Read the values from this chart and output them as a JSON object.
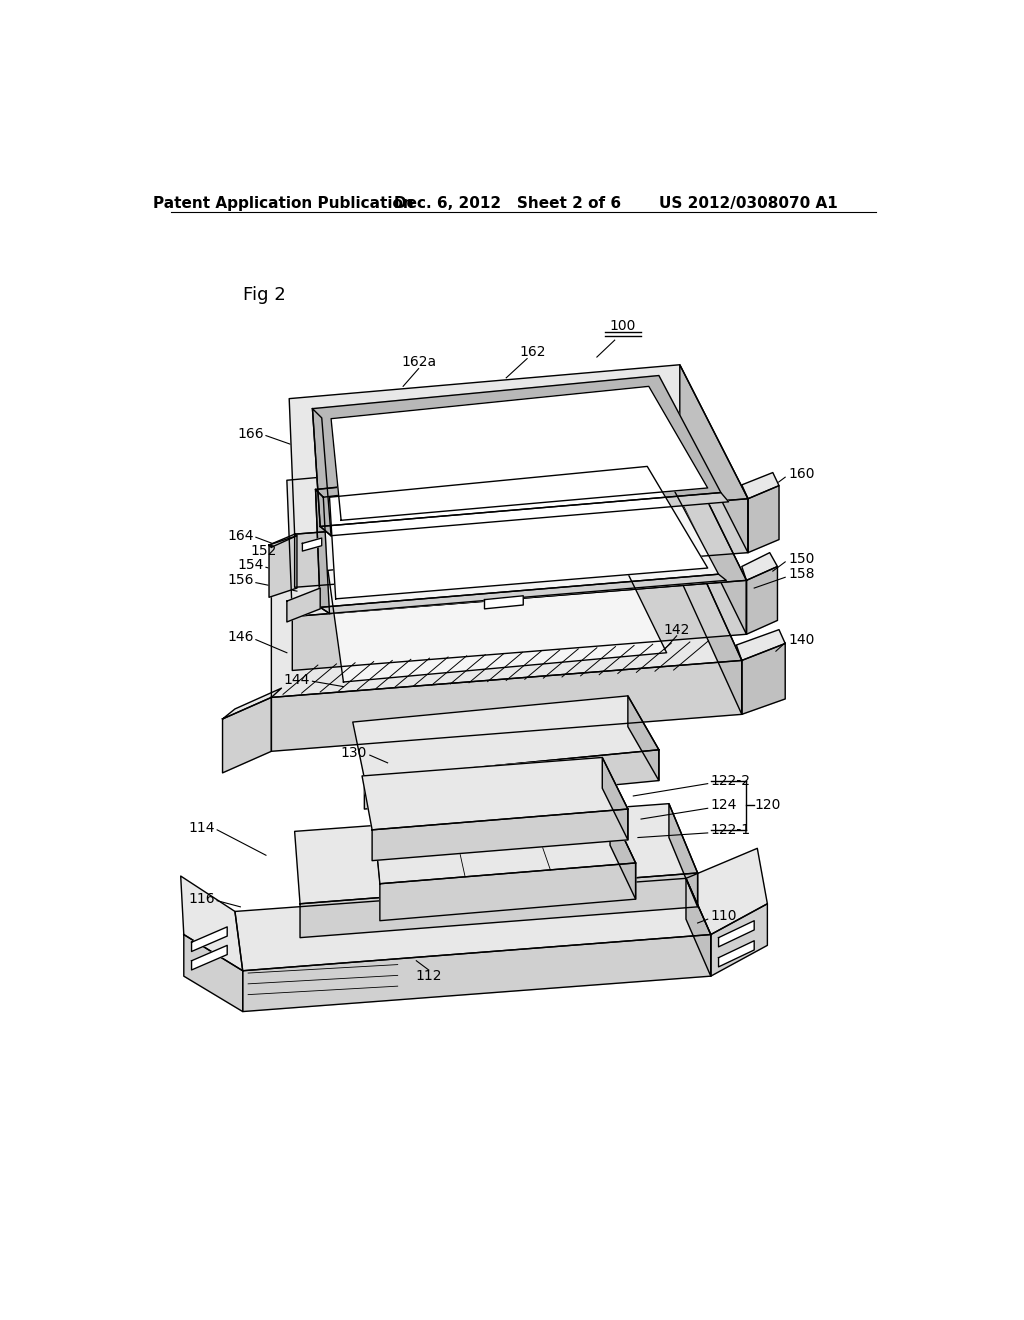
{
  "bg_color": "#ffffff",
  "header_left": "Patent Application Publication",
  "header_mid": "Dec. 6, 2012   Sheet 2 of 6",
  "header_right": "US 2012/0308070 A1",
  "fig_label": "Fig 2",
  "labels": {
    "100": "100",
    "160": "160",
    "162": "162",
    "162a": "162a",
    "166": "166",
    "164": "164",
    "152": "152",
    "154": "154",
    "156": "156",
    "150": "150",
    "158": "158",
    "146": "146",
    "142": "142",
    "144": "144",
    "140": "140",
    "130": "130",
    "120": "120",
    "122_2": "122-2",
    "124": "124",
    "122_1": "122-1",
    "114": "114",
    "116": "116",
    "110": "110",
    "112": "112"
  },
  "fc_top": "#e8e8e8",
  "fc_front": "#d0d0d0",
  "fc_right": "#c0c0c0",
  "fc_inner": "#f5f5f5",
  "fc_dark": "#b8b8b8",
  "fc_white": "#ffffff",
  "lw": 1.0,
  "fs_header": 11,
  "fs_label": 10,
  "fs_fig": 13
}
